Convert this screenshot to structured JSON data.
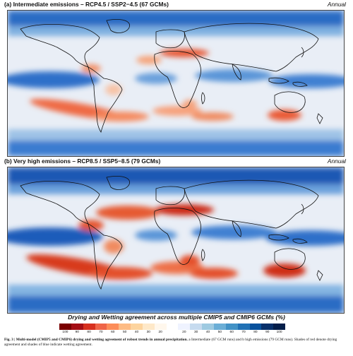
{
  "panels": [
    {
      "title": "(a) Intermediate emissions – RCP4.5 / SSP2−4.5 (67 GCMs)",
      "period": "Annual"
    },
    {
      "title": "(b) Very high emissions – RCP8.5 / SSP5−8.5 (79 GCMs)",
      "period": "Annual"
    }
  ],
  "legend": {
    "title": "Drying and Wetting agreement across multiple CMIP5 and CMIP6 GCMs (%)",
    "ticks": [
      "100",
      "90",
      "80",
      "70",
      "60",
      "50",
      "40",
      "30",
      "20",
      "",
      "20",
      "30",
      "40",
      "50",
      "60",
      "70",
      "80",
      "90",
      "100"
    ],
    "colors": [
      "#7a0000",
      "#a50f15",
      "#d7301f",
      "#ef6548",
      "#fc8d59",
      "#fdbb84",
      "#fdd49e",
      "#fee8c8",
      "#fff7ec",
      "#ffffff",
      "#eff3ff",
      "#c6dbef",
      "#9ecae1",
      "#6baed6",
      "#4292c6",
      "#2171b5",
      "#08519c",
      "#08306b",
      "#041e4a"
    ]
  },
  "caption": {
    "label": "Fig. 3 | Multi-model (CMIP5 and CMIP6) drying and wetting agreement of robust trends in annual precipitation.",
    "text": "a Intermediate (67 GCM runs) and b high emissions (79 GCM runs). Shades of red denote drying agreement and shades of blue indicate wetting agreement."
  }
}
